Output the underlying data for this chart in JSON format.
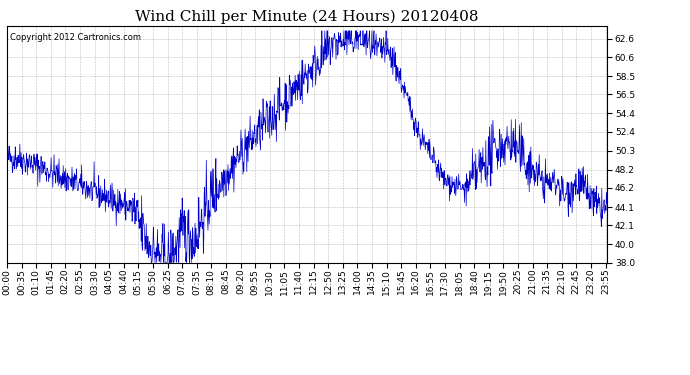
{
  "title": "Wind Chill per Minute (24 Hours) 20120408",
  "copyright_text": "Copyright 2012 Cartronics.com",
  "line_color": "#0000CC",
  "background_color": "#ffffff",
  "grid_color": "#aaaaaa",
  "ylim": [
    38.0,
    64.0
  ],
  "yticks": [
    38.0,
    40.0,
    42.1,
    44.1,
    46.2,
    48.2,
    50.3,
    52.4,
    54.4,
    56.5,
    58.5,
    60.6,
    62.6
  ],
  "title_fontsize": 11,
  "tick_fontsize": 6.5,
  "copyright_fontsize": 6
}
